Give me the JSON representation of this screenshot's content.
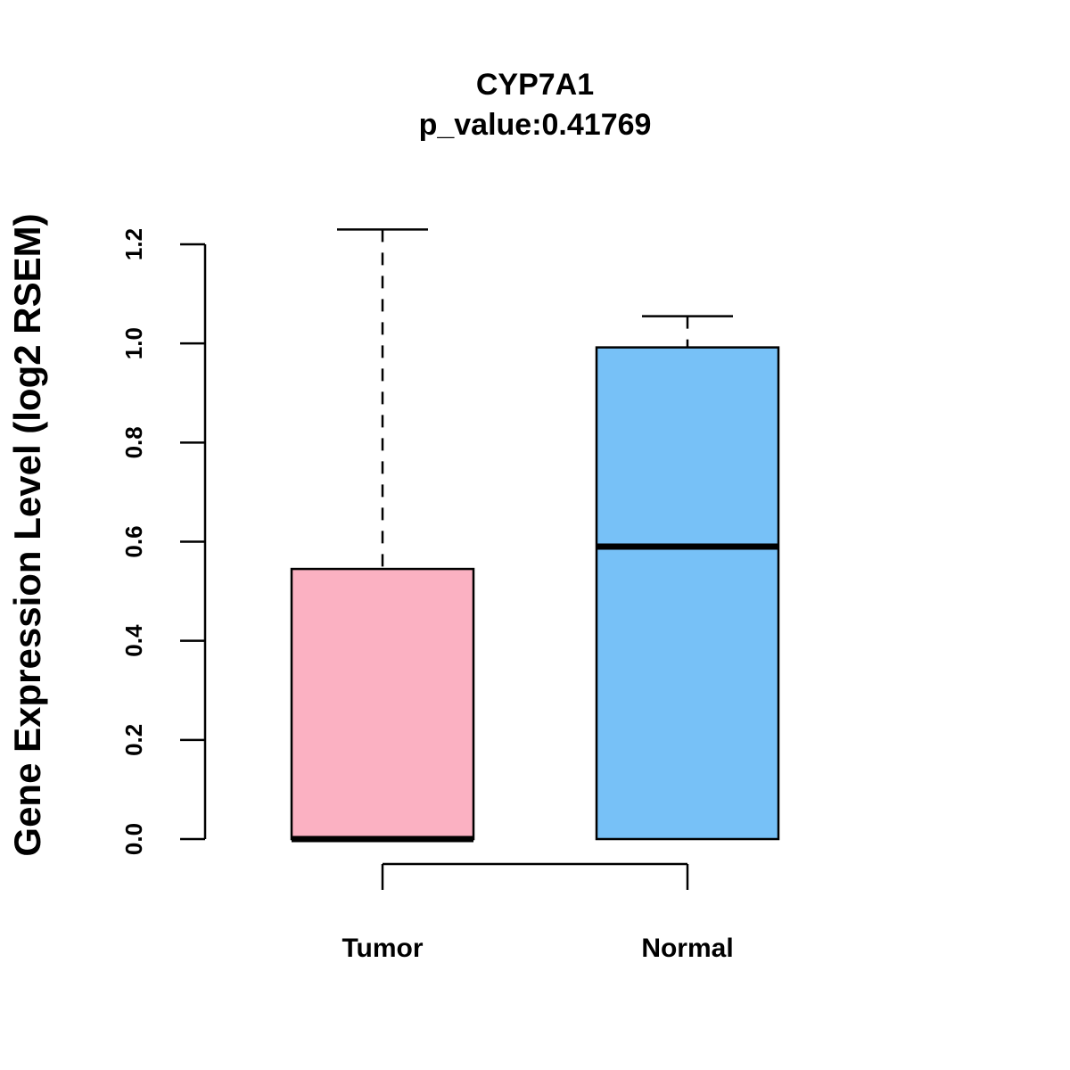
{
  "chart_data": {
    "type": "boxplot",
    "title": "CYP7A1",
    "subtitle": "p_value:0.41769",
    "xlabel": "",
    "ylabel": "Gene Expression Level (log2 RSEM)",
    "ylim": [
      0,
      1.2
    ],
    "yticks": [
      "0.0",
      "0.2",
      "0.4",
      "0.6",
      "0.8",
      "1.0",
      "1.2"
    ],
    "categories": [
      "Tumor",
      "Normal"
    ],
    "groups": [
      {
        "name": "Tumor",
        "min": 0.0,
        "q1": 0.0,
        "median": 0.0,
        "q3": 0.545,
        "max": 1.23,
        "whisker_low": 0.0,
        "whisker_high": 1.23,
        "color": "#FBB1C2"
      },
      {
        "name": "Normal",
        "min": 0.0,
        "q1": 0.0,
        "median": 0.59,
        "q3": 0.992,
        "max": 1.055,
        "whisker_low": 0.0,
        "whisker_high": 1.055,
        "color": "#77C1F7"
      }
    ],
    "grid": false,
    "legend": "none"
  }
}
